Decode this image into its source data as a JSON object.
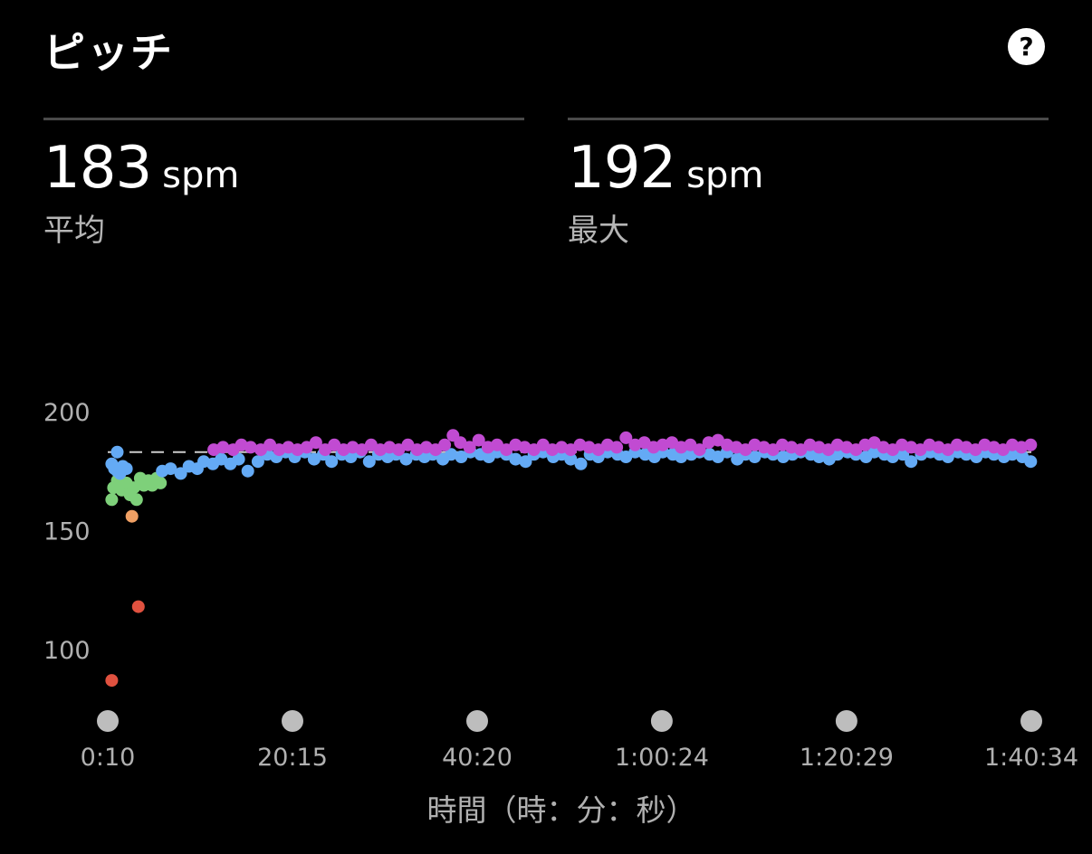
{
  "header": {
    "title": "ピッチ",
    "help_label": "?"
  },
  "stats": {
    "average": {
      "value": "183",
      "unit": "spm",
      "label": "平均"
    },
    "max": {
      "value": "192",
      "unit": "spm",
      "label": "最大"
    }
  },
  "chart_data": {
    "type": "scatter",
    "xlabel": "時間（時：分：秒）",
    "ylabel": "",
    "x_unit": "minutes",
    "xlim": [
      0.17,
      100.57
    ],
    "ylim": [
      84,
      200
    ],
    "y_ticks": [
      200,
      150,
      100
    ],
    "x_ticks": [
      {
        "value": 0.17,
        "label": "0:10"
      },
      {
        "value": 20.25,
        "label": "20:15"
      },
      {
        "value": 40.33,
        "label": "40:20"
      },
      {
        "value": 60.4,
        "label": "1:00:24"
      },
      {
        "value": 80.48,
        "label": "1:20:29"
      },
      {
        "value": 100.57,
        "label": "1:40:34"
      }
    ],
    "average_line": 183,
    "grid": false,
    "colors": {
      "red": "#e0513f",
      "orange": "#f0a064",
      "green": "#7ed07a",
      "blue": "#64aaf5",
      "purple": "#c14bd2",
      "average_line": "#cccccc",
      "marker": "#bdbdbd"
    },
    "series": [
      {
        "color_key": "red",
        "points": [
          [
            0.6,
            87
          ],
          [
            3.5,
            118
          ]
        ]
      },
      {
        "color_key": "orange",
        "points": [
          [
            2.8,
            156
          ]
        ]
      },
      {
        "color_key": "green",
        "points": [
          [
            0.6,
            163
          ],
          [
            0.8,
            168
          ],
          [
            1.2,
            171
          ],
          [
            1.7,
            167
          ],
          [
            2.2,
            170
          ],
          [
            2.6,
            165
          ],
          [
            3.0,
            168
          ],
          [
            3.3,
            163
          ],
          [
            3.7,
            172
          ],
          [
            4.1,
            169
          ],
          [
            4.6,
            171
          ],
          [
            5.0,
            169
          ],
          [
            5.5,
            172
          ],
          [
            5.9,
            170
          ]
        ]
      },
      {
        "color_key": "blue",
        "points": [
          [
            0.6,
            178
          ],
          [
            0.9,
            176
          ],
          [
            1.2,
            175
          ],
          [
            1.5,
            174
          ],
          [
            1.8,
            177
          ],
          [
            1.2,
            183
          ],
          [
            2.2,
            176
          ],
          [
            6.1,
            175
          ],
          [
            7.0,
            176
          ],
          [
            8.1,
            174
          ],
          [
            9.0,
            177
          ],
          [
            9.9,
            176
          ],
          [
            10.6,
            179
          ],
          [
            11.6,
            178
          ],
          [
            12.5,
            180
          ],
          [
            13.5,
            178
          ],
          [
            14.4,
            180
          ],
          [
            15.4,
            175
          ],
          [
            16.5,
            179
          ],
          [
            17.5,
            182
          ],
          [
            18.5,
            181
          ],
          [
            19.5,
            183
          ],
          [
            20.5,
            181
          ],
          [
            21.6,
            183
          ],
          [
            22.6,
            180
          ],
          [
            23.6,
            182
          ],
          [
            24.5,
            179
          ],
          [
            25.6,
            182
          ],
          [
            26.6,
            181
          ],
          [
            27.6,
            183
          ],
          [
            28.6,
            179
          ],
          [
            29.6,
            182
          ],
          [
            30.6,
            181
          ],
          [
            31.5,
            182
          ],
          [
            32.6,
            180
          ],
          [
            33.7,
            182
          ],
          [
            34.6,
            181
          ],
          [
            35.5,
            182
          ],
          [
            36.6,
            180
          ],
          [
            37.5,
            182
          ],
          [
            38.6,
            181
          ],
          [
            39.6,
            183
          ],
          [
            40.7,
            182
          ],
          [
            41.6,
            181
          ],
          [
            42.5,
            183
          ],
          [
            43.5,
            182
          ],
          [
            44.5,
            180
          ],
          [
            45.6,
            179
          ],
          [
            46.5,
            182
          ],
          [
            47.5,
            183
          ],
          [
            48.6,
            181
          ],
          [
            49.5,
            182
          ],
          [
            50.5,
            180
          ],
          [
            51.6,
            178
          ],
          [
            52.6,
            182
          ],
          [
            53.5,
            181
          ],
          [
            54.5,
            183
          ],
          [
            55.6,
            182
          ],
          [
            56.5,
            181
          ],
          [
            57.5,
            183
          ],
          [
            58.6,
            182
          ],
          [
            59.6,
            181
          ],
          [
            60.5,
            183
          ],
          [
            61.6,
            182
          ],
          [
            62.5,
            181
          ],
          [
            63.6,
            182
          ],
          [
            64.5,
            183
          ],
          [
            65.6,
            182
          ],
          [
            66.5,
            181
          ],
          [
            67.5,
            183
          ],
          [
            68.6,
            180
          ],
          [
            69.5,
            182
          ],
          [
            70.5,
            181
          ],
          [
            71.6,
            183
          ],
          [
            72.5,
            182
          ],
          [
            73.6,
            181
          ],
          [
            74.6,
            182
          ],
          [
            75.5,
            183
          ],
          [
            76.6,
            182
          ],
          [
            77.5,
            181
          ],
          [
            78.6,
            180
          ],
          [
            79.5,
            182
          ],
          [
            80.6,
            183
          ],
          [
            81.5,
            182
          ],
          [
            82.6,
            181
          ],
          [
            83.5,
            183
          ],
          [
            84.6,
            182
          ],
          [
            85.5,
            181
          ],
          [
            86.6,
            182
          ],
          [
            87.5,
            179
          ],
          [
            88.6,
            182
          ],
          [
            89.6,
            183
          ],
          [
            90.6,
            182
          ],
          [
            91.5,
            181
          ],
          [
            92.6,
            183
          ],
          [
            93.5,
            182
          ],
          [
            94.6,
            181
          ],
          [
            95.6,
            183
          ],
          [
            96.5,
            182
          ],
          [
            97.6,
            181
          ],
          [
            98.5,
            182
          ],
          [
            99.6,
            181
          ],
          [
            100.5,
            179
          ]
        ]
      },
      {
        "color_key": "purple",
        "points": [
          [
            11.7,
            184
          ],
          [
            12.7,
            185
          ],
          [
            13.8,
            184
          ],
          [
            14.7,
            186
          ],
          [
            15.7,
            185
          ],
          [
            16.8,
            184
          ],
          [
            17.8,
            186
          ],
          [
            18.8,
            184
          ],
          [
            19.8,
            185
          ],
          [
            20.8,
            184
          ],
          [
            21.8,
            185
          ],
          [
            22.8,
            187
          ],
          [
            23.8,
            184
          ],
          [
            24.8,
            186
          ],
          [
            25.8,
            184
          ],
          [
            26.8,
            185
          ],
          [
            27.8,
            184
          ],
          [
            28.8,
            186
          ],
          [
            29.8,
            184
          ],
          [
            30.8,
            185
          ],
          [
            31.8,
            184
          ],
          [
            32.8,
            186
          ],
          [
            33.8,
            184
          ],
          [
            34.8,
            185
          ],
          [
            35.8,
            184
          ],
          [
            36.8,
            186
          ],
          [
            37.7,
            190
          ],
          [
            38.5,
            187
          ],
          [
            39.5,
            185
          ],
          [
            40.5,
            188
          ],
          [
            41.5,
            185
          ],
          [
            42.5,
            186
          ],
          [
            43.5,
            184
          ],
          [
            44.5,
            186
          ],
          [
            45.5,
            185
          ],
          [
            46.5,
            184
          ],
          [
            47.5,
            186
          ],
          [
            48.5,
            184
          ],
          [
            49.5,
            185
          ],
          [
            50.5,
            184
          ],
          [
            51.5,
            186
          ],
          [
            52.5,
            185
          ],
          [
            53.5,
            184
          ],
          [
            54.5,
            186
          ],
          [
            55.5,
            185
          ],
          [
            56.5,
            189
          ],
          [
            57.5,
            186
          ],
          [
            58.5,
            187
          ],
          [
            59.5,
            185
          ],
          [
            60.5,
            186
          ],
          [
            61.5,
            187
          ],
          [
            62.5,
            185
          ],
          [
            63.5,
            186
          ],
          [
            64.5,
            184
          ],
          [
            65.5,
            187
          ],
          [
            66.5,
            188
          ],
          [
            67.5,
            186
          ],
          [
            68.5,
            185
          ],
          [
            69.5,
            184
          ],
          [
            70.5,
            186
          ],
          [
            71.5,
            185
          ],
          [
            72.5,
            184
          ],
          [
            73.5,
            186
          ],
          [
            74.5,
            185
          ],
          [
            75.5,
            184
          ],
          [
            76.5,
            186
          ],
          [
            77.5,
            185
          ],
          [
            78.5,
            184
          ],
          [
            79.5,
            186
          ],
          [
            80.5,
            185
          ],
          [
            81.5,
            184
          ],
          [
            82.5,
            186
          ],
          [
            83.5,
            187
          ],
          [
            84.5,
            185
          ],
          [
            85.5,
            184
          ],
          [
            86.5,
            186
          ],
          [
            87.5,
            185
          ],
          [
            88.5,
            184
          ],
          [
            89.5,
            186
          ],
          [
            90.5,
            185
          ],
          [
            91.5,
            184
          ],
          [
            92.5,
            186
          ],
          [
            93.5,
            185
          ],
          [
            94.5,
            184
          ],
          [
            95.5,
            186
          ],
          [
            96.5,
            185
          ],
          [
            97.5,
            184
          ],
          [
            98.5,
            186
          ],
          [
            99.5,
            185
          ],
          [
            100.5,
            186
          ]
        ]
      }
    ]
  }
}
